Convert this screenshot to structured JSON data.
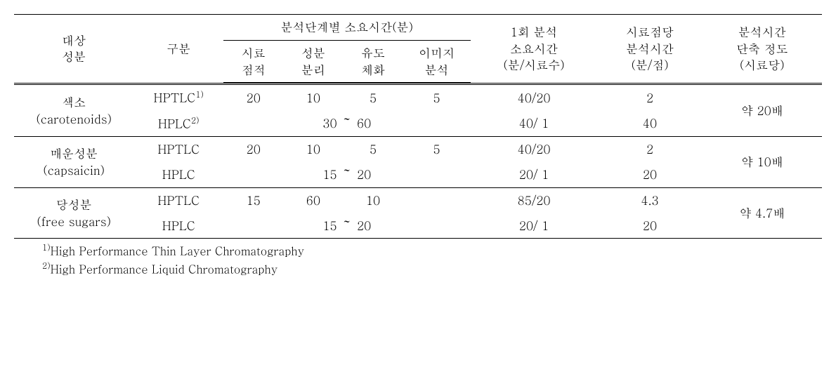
{
  "table": {
    "headers": {
      "component": "대상\n성분",
      "category": "구분",
      "stage_group": "분석단계별 소요시간(분)",
      "stage1": "시료\n점적",
      "stage2": "성분\n분리",
      "stage3": "유도\n체화",
      "stage4": "이미지\n분석",
      "per_run": "1회 분석\n소요시간\n(분/시료수)",
      "per_point": "시료점당\n분석시간\n(분/점)",
      "reduction": "분석시간\n단축 정도\n(시료당)"
    },
    "groups": [
      {
        "name_line1": "색소",
        "name_line2": "(carotenoids)",
        "rows": [
          {
            "cat_html": "HPTLC<span class='sup'>1)</span>",
            "c1": "20",
            "c2": "10",
            "c3": "5",
            "c4": "5",
            "per_run": "40/20",
            "per_point": "2"
          },
          {
            "cat_html": "HPLC<span class='sup'>2)</span>",
            "range": "30 ～ 60",
            "per_run": "40/ 1",
            "per_point": "40"
          }
        ],
        "reduction": "약 20배"
      },
      {
        "name_line1": "매운성분",
        "name_line2": "(capsaicin)",
        "rows": [
          {
            "cat_html": "HPTLC",
            "c1": "20",
            "c2": "10",
            "c3": "5",
            "c4": "5",
            "per_run": "40/20",
            "per_point": "2"
          },
          {
            "cat_html": "HPLC",
            "range": "15 ～ 20",
            "per_run": "20/ 1",
            "per_point": "20"
          }
        ],
        "reduction": "약 10배"
      },
      {
        "name_line1": "당성분",
        "name_line2": "(free sugars)",
        "rows": [
          {
            "cat_html": "HPTLC",
            "c1": "15",
            "c2": "60",
            "c3": "10",
            "c4": "",
            "per_run": "85/20",
            "per_point": "4.3"
          },
          {
            "cat_html": "HPLC",
            "range": "15 ～ 20",
            "per_run": "20/ 1",
            "per_point": "20"
          }
        ],
        "reduction": "약 4.7배"
      }
    ]
  },
  "footnotes": {
    "f1_sup": "1)",
    "f1": "High Performance Thin Layer Chromatography",
    "f2_sup": "2)",
    "f2": "High Performance Liquid Chromatography"
  }
}
